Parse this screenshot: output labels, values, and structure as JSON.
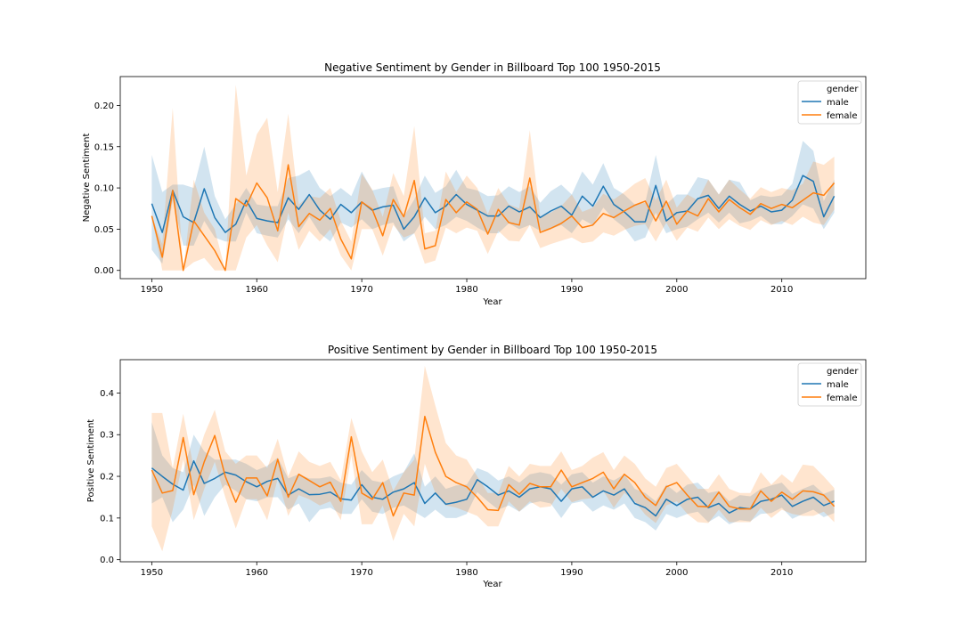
{
  "colors": {
    "male": "#1f77b4",
    "female": "#ff7f0e",
    "male_band": "#1f77b4",
    "female_band": "#ff7f0e"
  },
  "legend_title": "gender",
  "legend_labels": [
    "male",
    "female"
  ],
  "chart_data": [
    {
      "type": "line",
      "title": "Negative Sentiment by Gender in Billboard Top 100 1950-2015",
      "xlabel": "Year",
      "ylabel": "Negative Sentiment",
      "xlim": [
        1947,
        2018
      ],
      "ylim": [
        -0.01,
        0.235
      ],
      "xticks": [
        1950,
        1960,
        1970,
        1980,
        1990,
        2000,
        2010
      ],
      "yticks": [
        0.0,
        0.05,
        0.1,
        0.15,
        0.2
      ],
      "ytick_labels": [
        "0.00",
        "0.05",
        "0.10",
        "0.15",
        "0.20"
      ],
      "legend": "upper right",
      "grid": false,
      "x": [
        1950,
        1951,
        1952,
        1953,
        1954,
        1955,
        1956,
        1957,
        1958,
        1959,
        1960,
        1961,
        1962,
        1963,
        1964,
        1965,
        1966,
        1967,
        1968,
        1969,
        1970,
        1971,
        1972,
        1973,
        1974,
        1975,
        1976,
        1977,
        1978,
        1979,
        1980,
        1981,
        1982,
        1983,
        1984,
        1985,
        1986,
        1987,
        1988,
        1989,
        1990,
        1991,
        1992,
        1993,
        1994,
        1995,
        1996,
        1997,
        1998,
        1999,
        2000,
        2001,
        2002,
        2003,
        2004,
        2005,
        2006,
        2007,
        2008,
        2009,
        2010,
        2011,
        2012,
        2013,
        2014,
        2015
      ],
      "series": [
        {
          "name": "male",
          "values": [
            0.081,
            0.046,
            0.097,
            0.065,
            0.058,
            0.099,
            0.064,
            0.046,
            0.056,
            0.085,
            0.063,
            0.06,
            0.058,
            0.088,
            0.074,
            0.092,
            0.073,
            0.062,
            0.08,
            0.07,
            0.083,
            0.073,
            0.077,
            0.079,
            0.05,
            0.065,
            0.088,
            0.07,
            0.078,
            0.092,
            0.08,
            0.073,
            0.066,
            0.066,
            0.078,
            0.071,
            0.077,
            0.064,
            0.072,
            0.078,
            0.067,
            0.09,
            0.078,
            0.102,
            0.08,
            0.071,
            0.059,
            0.059,
            0.103,
            0.06,
            0.07,
            0.072,
            0.087,
            0.091,
            0.075,
            0.09,
            0.08,
            0.072,
            0.078,
            0.071,
            0.073,
            0.085,
            0.115,
            0.108,
            0.065,
            0.09
          ],
          "upper": [
            0.14,
            0.095,
            0.104,
            0.104,
            0.1,
            0.15,
            0.09,
            0.062,
            0.08,
            0.1,
            0.08,
            0.078,
            0.078,
            0.112,
            0.115,
            0.122,
            0.1,
            0.09,
            0.1,
            0.09,
            0.12,
            0.097,
            0.1,
            0.102,
            0.065,
            0.086,
            0.115,
            0.094,
            0.102,
            0.122,
            0.1,
            0.097,
            0.09,
            0.091,
            0.102,
            0.095,
            0.102,
            0.082,
            0.096,
            0.104,
            0.092,
            0.12,
            0.104,
            0.13,
            0.1,
            0.092,
            0.08,
            0.082,
            0.14,
            0.08,
            0.092,
            0.092,
            0.113,
            0.11,
            0.092,
            0.11,
            0.107,
            0.085,
            0.091,
            0.089,
            0.091,
            0.105,
            0.157,
            0.145,
            0.084,
            0.11
          ],
          "lower": [
            0.025,
            0.008,
            0.085,
            0.03,
            0.03,
            0.06,
            0.04,
            0.035,
            0.035,
            0.07,
            0.045,
            0.042,
            0.04,
            0.062,
            0.045,
            0.065,
            0.045,
            0.035,
            0.058,
            0.052,
            0.062,
            0.05,
            0.055,
            0.058,
            0.035,
            0.045,
            0.065,
            0.05,
            0.055,
            0.065,
            0.06,
            0.052,
            0.045,
            0.045,
            0.057,
            0.05,
            0.055,
            0.048,
            0.05,
            0.055,
            0.045,
            0.062,
            0.055,
            0.076,
            0.062,
            0.052,
            0.035,
            0.04,
            0.07,
            0.045,
            0.05,
            0.053,
            0.062,
            0.07,
            0.058,
            0.07,
            0.057,
            0.06,
            0.066,
            0.056,
            0.056,
            0.066,
            0.08,
            0.075,
            0.05,
            0.07
          ]
        },
        {
          "name": "female",
          "values": [
            0.066,
            0.016,
            0.097,
            0.0,
            0.06,
            0.042,
            0.024,
            0.0,
            0.087,
            0.078,
            0.106,
            0.088,
            0.048,
            0.128,
            0.053,
            0.069,
            0.061,
            0.075,
            0.038,
            0.014,
            0.083,
            0.074,
            0.042,
            0.086,
            0.065,
            0.109,
            0.026,
            0.03,
            0.086,
            0.07,
            0.083,
            0.074,
            0.044,
            0.074,
            0.058,
            0.055,
            0.112,
            0.046,
            0.051,
            0.057,
            0.066,
            0.052,
            0.055,
            0.069,
            0.064,
            0.072,
            0.079,
            0.084,
            0.06,
            0.084,
            0.056,
            0.072,
            0.066,
            0.087,
            0.071,
            0.086,
            0.076,
            0.068,
            0.081,
            0.075,
            0.08,
            0.076,
            0.085,
            0.094,
            0.091,
            0.106
          ],
          "upper": [
            0.066,
            0.032,
            0.197,
            0.0,
            0.11,
            0.07,
            0.05,
            0.0,
            0.225,
            0.115,
            0.165,
            0.185,
            0.095,
            0.19,
            0.08,
            0.09,
            0.088,
            0.1,
            0.06,
            0.035,
            0.117,
            0.098,
            0.065,
            0.118,
            0.09,
            0.175,
            0.045,
            0.048,
            0.12,
            0.095,
            0.115,
            0.1,
            0.068,
            0.1,
            0.08,
            0.075,
            0.17,
            0.065,
            0.07,
            0.078,
            0.092,
            0.071,
            0.076,
            0.093,
            0.086,
            0.095,
            0.105,
            0.112,
            0.085,
            0.11,
            0.076,
            0.092,
            0.085,
            0.11,
            0.092,
            0.11,
            0.098,
            0.087,
            0.101,
            0.095,
            0.1,
            0.097,
            0.105,
            0.132,
            0.128,
            0.138
          ],
          "lower": [
            0.066,
            0.0,
            0.0,
            0.0,
            0.01,
            0.015,
            0.0,
            0.0,
            0.0,
            0.04,
            0.055,
            0.03,
            0.01,
            0.07,
            0.025,
            0.048,
            0.035,
            0.05,
            0.018,
            0.0,
            0.05,
            0.05,
            0.018,
            0.055,
            0.04,
            0.045,
            0.008,
            0.012,
            0.052,
            0.045,
            0.052,
            0.048,
            0.02,
            0.048,
            0.036,
            0.035,
            0.055,
            0.027,
            0.032,
            0.036,
            0.04,
            0.033,
            0.035,
            0.046,
            0.042,
            0.049,
            0.054,
            0.056,
            0.035,
            0.058,
            0.036,
            0.052,
            0.047,
            0.064,
            0.05,
            0.062,
            0.054,
            0.049,
            0.061,
            0.055,
            0.06,
            0.055,
            0.065,
            0.058,
            0.055,
            0.074
          ]
        }
      ]
    },
    {
      "type": "line",
      "title": "Positive Sentiment by Gender in Billboard Top 100 1950-2015",
      "xlabel": "Year",
      "ylabel": "Positive Sentiment",
      "xlim": [
        1947,
        2018
      ],
      "ylim": [
        -0.005,
        0.48
      ],
      "xticks": [
        1950,
        1960,
        1970,
        1980,
        1990,
        2000,
        2010
      ],
      "yticks": [
        0.0,
        0.1,
        0.2,
        0.3,
        0.4
      ],
      "ytick_labels": [
        "0.0",
        "0.1",
        "0.2",
        "0.3",
        "0.4"
      ],
      "legend": "upper right",
      "grid": false,
      "x": [
        1950,
        1951,
        1952,
        1953,
        1954,
        1955,
        1956,
        1957,
        1958,
        1959,
        1960,
        1961,
        1962,
        1963,
        1964,
        1965,
        1966,
        1967,
        1968,
        1969,
        1970,
        1971,
        1972,
        1973,
        1974,
        1975,
        1976,
        1977,
        1978,
        1979,
        1980,
        1981,
        1982,
        1983,
        1984,
        1985,
        1986,
        1987,
        1988,
        1989,
        1990,
        1991,
        1992,
        1993,
        1994,
        1995,
        1996,
        1997,
        1998,
        1999,
        2000,
        2001,
        2002,
        2003,
        2004,
        2005,
        2006,
        2007,
        2008,
        2009,
        2010,
        2011,
        2012,
        2013,
        2014,
        2015
      ],
      "series": [
        {
          "name": "male",
          "values": [
            0.22,
            0.2,
            0.181,
            0.167,
            0.237,
            0.183,
            0.195,
            0.21,
            0.203,
            0.187,
            0.175,
            0.188,
            0.195,
            0.155,
            0.17,
            0.156,
            0.157,
            0.162,
            0.146,
            0.143,
            0.18,
            0.15,
            0.145,
            0.162,
            0.17,
            0.185,
            0.135,
            0.16,
            0.133,
            0.138,
            0.145,
            0.192,
            0.175,
            0.155,
            0.165,
            0.15,
            0.17,
            0.175,
            0.17,
            0.14,
            0.17,
            0.175,
            0.15,
            0.165,
            0.155,
            0.17,
            0.135,
            0.125,
            0.105,
            0.145,
            0.13,
            0.145,
            0.15,
            0.125,
            0.135,
            0.112,
            0.125,
            0.122,
            0.14,
            0.145,
            0.155,
            0.128,
            0.14,
            0.15,
            0.13,
            0.14
          ],
          "upper": [
            0.33,
            0.25,
            0.22,
            0.21,
            0.3,
            0.26,
            0.24,
            0.24,
            0.24,
            0.23,
            0.215,
            0.225,
            0.245,
            0.195,
            0.205,
            0.195,
            0.195,
            0.2,
            0.185,
            0.18,
            0.215,
            0.19,
            0.185,
            0.2,
            0.21,
            0.255,
            0.175,
            0.2,
            0.17,
            0.178,
            0.18,
            0.22,
            0.21,
            0.19,
            0.2,
            0.185,
            0.205,
            0.21,
            0.205,
            0.18,
            0.205,
            0.21,
            0.185,
            0.2,
            0.19,
            0.205,
            0.17,
            0.16,
            0.14,
            0.18,
            0.16,
            0.18,
            0.185,
            0.16,
            0.165,
            0.14,
            0.155,
            0.152,
            0.17,
            0.178,
            0.185,
            0.158,
            0.17,
            0.18,
            0.158,
            0.168
          ],
          "lower": [
            0.135,
            0.15,
            0.09,
            0.12,
            0.18,
            0.105,
            0.15,
            0.18,
            0.165,
            0.145,
            0.14,
            0.15,
            0.15,
            0.12,
            0.135,
            0.09,
            0.12,
            0.125,
            0.11,
            0.11,
            0.145,
            0.115,
            0.11,
            0.125,
            0.13,
            0.115,
            0.1,
            0.12,
            0.1,
            0.1,
            0.11,
            0.162,
            0.14,
            0.12,
            0.13,
            0.115,
            0.135,
            0.14,
            0.135,
            0.1,
            0.135,
            0.14,
            0.115,
            0.13,
            0.12,
            0.135,
            0.1,
            0.09,
            0.07,
            0.11,
            0.1,
            0.11,
            0.115,
            0.09,
            0.105,
            0.085,
            0.095,
            0.092,
            0.11,
            0.112,
            0.125,
            0.098,
            0.11,
            0.12,
            0.102,
            0.112
          ]
        },
        {
          "name": "female",
          "values": [
            0.215,
            0.16,
            0.166,
            0.293,
            0.156,
            0.235,
            0.298,
            0.2,
            0.138,
            0.196,
            0.196,
            0.153,
            0.241,
            0.15,
            0.205,
            0.19,
            0.175,
            0.186,
            0.14,
            0.295,
            0.16,
            0.145,
            0.185,
            0.105,
            0.16,
            0.155,
            0.344,
            0.258,
            0.2,
            0.185,
            0.175,
            0.15,
            0.12,
            0.118,
            0.18,
            0.157,
            0.183,
            0.175,
            0.175,
            0.215,
            0.175,
            0.185,
            0.195,
            0.21,
            0.17,
            0.205,
            0.185,
            0.15,
            0.13,
            0.175,
            0.185,
            0.155,
            0.128,
            0.127,
            0.162,
            0.128,
            0.122,
            0.122,
            0.165,
            0.14,
            0.162,
            0.145,
            0.165,
            0.163,
            0.155,
            0.128
          ],
          "upper": [
            0.352,
            0.352,
            0.22,
            0.35,
            0.22,
            0.3,
            0.36,
            0.26,
            0.23,
            0.25,
            0.25,
            0.22,
            0.29,
            0.2,
            0.26,
            0.235,
            0.225,
            0.235,
            0.19,
            0.34,
            0.26,
            0.21,
            0.24,
            0.165,
            0.21,
            0.24,
            0.465,
            0.37,
            0.28,
            0.25,
            0.24,
            0.2,
            0.16,
            0.16,
            0.225,
            0.2,
            0.23,
            0.225,
            0.225,
            0.26,
            0.215,
            0.225,
            0.245,
            0.258,
            0.215,
            0.25,
            0.23,
            0.195,
            0.175,
            0.22,
            0.23,
            0.2,
            0.17,
            0.17,
            0.205,
            0.17,
            0.16,
            0.16,
            0.21,
            0.18,
            0.205,
            0.185,
            0.228,
            0.225,
            0.2,
            0.172
          ],
          "lower": [
            0.08,
            0.02,
            0.12,
            0.24,
            0.095,
            0.17,
            0.235,
            0.15,
            0.075,
            0.145,
            0.145,
            0.095,
            0.195,
            0.105,
            0.155,
            0.145,
            0.13,
            0.14,
            0.095,
            0.25,
            0.085,
            0.085,
            0.13,
            0.045,
            0.11,
            0.08,
            0.23,
            0.16,
            0.13,
            0.125,
            0.115,
            0.105,
            0.08,
            0.08,
            0.14,
            0.115,
            0.14,
            0.125,
            0.128,
            0.17,
            0.138,
            0.145,
            0.148,
            0.165,
            0.125,
            0.16,
            0.14,
            0.108,
            0.088,
            0.13,
            0.14,
            0.11,
            0.09,
            0.088,
            0.12,
            0.09,
            0.09,
            0.09,
            0.125,
            0.1,
            0.12,
            0.11,
            0.105,
            0.105,
            0.115,
            0.09
          ]
        }
      ]
    }
  ]
}
